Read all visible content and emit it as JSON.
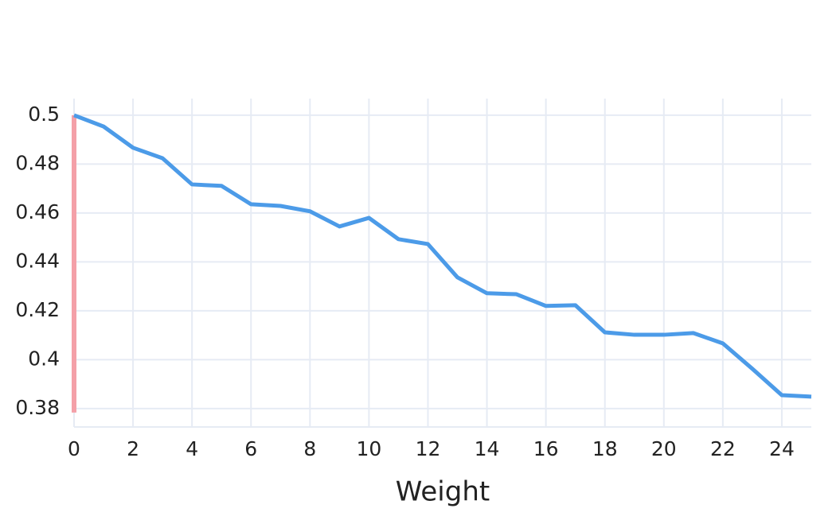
{
  "chart_data": {
    "type": "line",
    "x_label": "Weight",
    "xlim": [
      0,
      25
    ],
    "ylim": [
      0.3725,
      0.5068
    ],
    "xticks": [
      0,
      2,
      4,
      6,
      8,
      10,
      12,
      14,
      16,
      18,
      20,
      22,
      24
    ],
    "yticks": [
      0.38,
      0.4,
      0.42,
      0.44,
      0.46,
      0.48,
      0.5
    ],
    "grid": true,
    "series": [
      {
        "color": "#f4a0a8",
        "x": [
          0,
          0
        ],
        "values": [
          0.3784,
          0.5
        ]
      },
      {
        "color": "#4c9be8",
        "x": [
          0,
          1,
          2,
          3,
          4,
          5,
          6,
          7,
          8,
          9,
          10,
          11,
          12,
          13,
          14,
          15,
          16,
          17,
          18,
          19,
          20,
          21,
          22,
          23,
          24,
          25
        ],
        "values": [
          0.5,
          0.4954,
          0.4867,
          0.4824,
          0.4717,
          0.4711,
          0.4636,
          0.4629,
          0.4607,
          0.4545,
          0.458,
          0.4493,
          0.4473,
          0.4337,
          0.4272,
          0.4268,
          0.422,
          0.4223,
          0.4112,
          0.4102,
          0.4102,
          0.4109,
          0.4067,
          0.3963,
          0.3855,
          0.3849
        ]
      }
    ]
  }
}
